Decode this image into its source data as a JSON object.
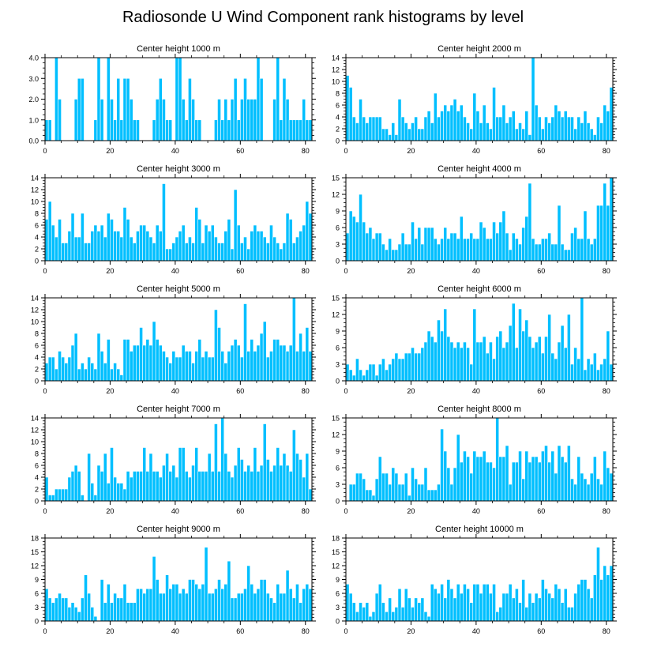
{
  "title": "Radiosonde U Wind Component rank histograms by level",
  "bar_color": "#00BFFF",
  "bar_edge": "#ffffff",
  "chart_data": [
    {
      "type": "bar",
      "title": "Center height 1000 m",
      "xlim": [
        0,
        82
      ],
      "ylim": [
        0,
        4
      ],
      "yticks": [
        0,
        1,
        2,
        3,
        4
      ],
      "ytick_labels": [
        "0.0",
        "1.0",
        "2.0",
        "3.0",
        "4.0"
      ],
      "xticks": [
        0,
        20,
        40,
        60,
        80
      ],
      "values": [
        1,
        1,
        0,
        4,
        2,
        0,
        0,
        0,
        0,
        2,
        3,
        3,
        0,
        0,
        0,
        1,
        4,
        2,
        0,
        4,
        2,
        1,
        3,
        1,
        3,
        3,
        2,
        1,
        1,
        0,
        0,
        0,
        0,
        1,
        2,
        3,
        2,
        1,
        1,
        0,
        4,
        4,
        2,
        1,
        3,
        2,
        1,
        1,
        0,
        0,
        0,
        0,
        1,
        2,
        1,
        2,
        1,
        2,
        3,
        1,
        2,
        3,
        2,
        2,
        2,
        4,
        3,
        0,
        0,
        0,
        2,
        4,
        1,
        3,
        2,
        1,
        1,
        1,
        1,
        2,
        1,
        1
      ]
    },
    {
      "type": "bar",
      "title": "Center height 2000 m",
      "xlim": [
        0,
        82
      ],
      "ylim": [
        0,
        14
      ],
      "yticks": [
        0,
        2,
        4,
        6,
        8,
        10,
        12,
        14
      ],
      "ytick_labels": [
        "0",
        "2",
        "4",
        "6",
        "8",
        "10",
        "12",
        "14"
      ],
      "xticks": [
        0,
        20,
        40,
        60,
        80
      ],
      "values": [
        11,
        9,
        4,
        3,
        7,
        4,
        3,
        4,
        4,
        4,
        4,
        2,
        2,
        1,
        3,
        1,
        7,
        4,
        3,
        2,
        3,
        4,
        2,
        2,
        4,
        5,
        3,
        8,
        4,
        5,
        6,
        5,
        6,
        7,
        5,
        6,
        4,
        3,
        2,
        8,
        5,
        3,
        6,
        3,
        2,
        9,
        4,
        4,
        6,
        3,
        4,
        5,
        2,
        3,
        2,
        5,
        1,
        14,
        6,
        4,
        2,
        4,
        3,
        4,
        6,
        5,
        4,
        5,
        4,
        4,
        2,
        4,
        3,
        5,
        3,
        2,
        1,
        4,
        3,
        6,
        5,
        9
      ]
    },
    {
      "type": "bar",
      "title": "Center height 3000 m",
      "xlim": [
        0,
        82
      ],
      "ylim": [
        0,
        14
      ],
      "yticks": [
        0,
        2,
        4,
        6,
        8,
        10,
        12,
        14
      ],
      "ytick_labels": [
        "0",
        "2",
        "4",
        "6",
        "8",
        "10",
        "12",
        "14"
      ],
      "xticks": [
        0,
        20,
        40,
        60,
        80
      ],
      "values": [
        7,
        10,
        6,
        4,
        7,
        3,
        3,
        5,
        8,
        4,
        4,
        8,
        3,
        3,
        5,
        6,
        5,
        6,
        4,
        8,
        7,
        5,
        5,
        4,
        9,
        7,
        4,
        3,
        5,
        6,
        6,
        5,
        4,
        3,
        6,
        5,
        13,
        2,
        2,
        3,
        4,
        5,
        6,
        3,
        4,
        3,
        9,
        7,
        3,
        6,
        5,
        6,
        4,
        3,
        3,
        5,
        7,
        2,
        12,
        6,
        3,
        4,
        2,
        5,
        6,
        5,
        5,
        4,
        3,
        6,
        4,
        3,
        2,
        3,
        8,
        7,
        3,
        4,
        5,
        6,
        10,
        8
      ]
    },
    {
      "type": "bar",
      "title": "Center height 4000 m",
      "xlim": [
        0,
        82
      ],
      "ylim": [
        0,
        15
      ],
      "yticks": [
        0,
        3,
        6,
        9,
        12,
        15
      ],
      "ytick_labels": [
        "0",
        "3",
        "6",
        "9",
        "12",
        "15"
      ],
      "xticks": [
        0,
        20,
        40,
        60,
        80
      ],
      "values": [
        5,
        9,
        8,
        7,
        12,
        7,
        5,
        6,
        4,
        5,
        5,
        3,
        2,
        4,
        2,
        2,
        3,
        5,
        3,
        3,
        7,
        4,
        6,
        3,
        6,
        6,
        6,
        4,
        3,
        4,
        6,
        4,
        5,
        5,
        4,
        8,
        4,
        4,
        5,
        4,
        4,
        7,
        6,
        4,
        4,
        7,
        5,
        7,
        9,
        5,
        2,
        5,
        4,
        3,
        6,
        8,
        14,
        4,
        3,
        3,
        4,
        4,
        5,
        3,
        3,
        10,
        3,
        2,
        2,
        5,
        6,
        4,
        4,
        9,
        4,
        3,
        4,
        10,
        10,
        14,
        10,
        15
      ]
    },
    {
      "type": "bar",
      "title": "Center height 5000 m",
      "xlim": [
        0,
        82
      ],
      "ylim": [
        0,
        14
      ],
      "yticks": [
        0,
        2,
        4,
        6,
        8,
        10,
        12,
        14
      ],
      "ytick_labels": [
        "0",
        "2",
        "4",
        "6",
        "8",
        "10",
        "12",
        "14"
      ],
      "xticks": [
        0,
        20,
        40,
        60,
        80
      ],
      "values": [
        3,
        4,
        4,
        2,
        5,
        4,
        3,
        4,
        6,
        8,
        2,
        3,
        2,
        4,
        3,
        2,
        8,
        5,
        3,
        7,
        2,
        3,
        2,
        1,
        7,
        7,
        5,
        6,
        6,
        9,
        6,
        7,
        6,
        10,
        7,
        6,
        5,
        4,
        3,
        5,
        4,
        4,
        6,
        5,
        5,
        3,
        5,
        7,
        4,
        5,
        4,
        4,
        12,
        9,
        5,
        3,
        5,
        6,
        7,
        6,
        4,
        13,
        5,
        7,
        5,
        6,
        8,
        10,
        4,
        5,
        7,
        7,
        6,
        6,
        5,
        6,
        14,
        5,
        8,
        5,
        9,
        5
      ]
    },
    {
      "type": "bar",
      "title": "Center height 6000 m",
      "xlim": [
        0,
        82
      ],
      "ylim": [
        0,
        15
      ],
      "yticks": [
        0,
        3,
        6,
        9,
        12,
        15
      ],
      "ytick_labels": [
        "0",
        "3",
        "6",
        "9",
        "12",
        "15"
      ],
      "xticks": [
        0,
        20,
        40,
        60,
        80
      ],
      "values": [
        3,
        2,
        1,
        4,
        2,
        1,
        2,
        3,
        3,
        1,
        3,
        4,
        2,
        3,
        4,
        5,
        4,
        4,
        5,
        5,
        6,
        5,
        5,
        6,
        7,
        9,
        8,
        7,
        11,
        9,
        13,
        8,
        7,
        6,
        7,
        6,
        7,
        6,
        3,
        13,
        7,
        7,
        8,
        5,
        7,
        4,
        8,
        9,
        6,
        7,
        10,
        14,
        6,
        13,
        9,
        11,
        8,
        6,
        7,
        8,
        5,
        8,
        12,
        5,
        4,
        7,
        10,
        6,
        12,
        3,
        6,
        4,
        15,
        2,
        4,
        3,
        5,
        2,
        3,
        4,
        9,
        3
      ]
    },
    {
      "type": "bar",
      "title": "Center height 7000 m",
      "xlim": [
        0,
        82
      ],
      "ylim": [
        0,
        14
      ],
      "yticks": [
        0,
        2,
        4,
        6,
        8,
        10,
        12,
        14
      ],
      "ytick_labels": [
        "0",
        "2",
        "4",
        "6",
        "8",
        "10",
        "12",
        "14"
      ],
      "xticks": [
        0,
        20,
        40,
        60,
        80
      ],
      "values": [
        4,
        1,
        1,
        2,
        2,
        2,
        2,
        4,
        5,
        6,
        5,
        1,
        0,
        8,
        3,
        1,
        6,
        5,
        8,
        3,
        9,
        4,
        3,
        3,
        2,
        5,
        4,
        5,
        5,
        5,
        9,
        5,
        8,
        5,
        5,
        4,
        6,
        8,
        5,
        6,
        4,
        9,
        9,
        5,
        4,
        6,
        9,
        5,
        5,
        5,
        8,
        5,
        13,
        5,
        14,
        8,
        5,
        4,
        6,
        9,
        7,
        5,
        6,
        5,
        9,
        5,
        6,
        13,
        7,
        5,
        6,
        9,
        6,
        8,
        6,
        5,
        12,
        8,
        7,
        4,
        8,
        2
      ]
    },
    {
      "type": "bar",
      "title": "Center height 8000 m",
      "xlim": [
        0,
        82
      ],
      "ylim": [
        0,
        15
      ],
      "yticks": [
        0,
        3,
        6,
        9,
        12,
        15
      ],
      "ytick_labels": [
        "0",
        "3",
        "6",
        "9",
        "12",
        "15"
      ],
      "xticks": [
        0,
        20,
        40,
        60,
        80
      ],
      "values": [
        0,
        3,
        3,
        5,
        5,
        4,
        2,
        2,
        1,
        4,
        8,
        5,
        5,
        3,
        6,
        5,
        3,
        3,
        5,
        1,
        6,
        4,
        3,
        3,
        6,
        2,
        2,
        2,
        3,
        13,
        9,
        6,
        3,
        6,
        12,
        7,
        9,
        8,
        5,
        9,
        8,
        8,
        9,
        7,
        7,
        6,
        15,
        8,
        8,
        10,
        3,
        7,
        7,
        9,
        4,
        9,
        7,
        8,
        8,
        7,
        9,
        10,
        7,
        9,
        5,
        10,
        8,
        7,
        10,
        4,
        3,
        8,
        5,
        4,
        3,
        5,
        8,
        4,
        3,
        9,
        6,
        5
      ]
    },
    {
      "type": "bar",
      "title": "Center height 9000 m",
      "xlim": [
        0,
        82
      ],
      "ylim": [
        0,
        18
      ],
      "yticks": [
        0,
        3,
        6,
        9,
        12,
        15,
        18
      ],
      "ytick_labels": [
        "0",
        "3",
        "6",
        "9",
        "12",
        "15",
        "18"
      ],
      "xticks": [
        0,
        20,
        40,
        60,
        80
      ],
      "values": [
        7,
        5,
        4,
        5,
        6,
        5,
        5,
        3,
        4,
        3,
        2,
        5,
        10,
        6,
        3,
        1,
        0,
        9,
        4,
        8,
        4,
        6,
        5,
        5,
        8,
        4,
        4,
        4,
        7,
        7,
        6,
        7,
        7,
        14,
        9,
        6,
        6,
        10,
        7,
        8,
        8,
        6,
        7,
        6,
        9,
        9,
        8,
        7,
        8,
        16,
        6,
        6,
        7,
        9,
        7,
        8,
        13,
        5,
        5,
        6,
        6,
        7,
        12,
        8,
        6,
        7,
        9,
        9,
        6,
        5,
        4,
        8,
        6,
        6,
        11,
        7,
        5,
        8,
        4,
        7,
        8,
        7
      ]
    },
    {
      "type": "bar",
      "title": "Center height 10000 m",
      "xlim": [
        0,
        82
      ],
      "ylim": [
        0,
        18
      ],
      "yticks": [
        0,
        3,
        6,
        9,
        12,
        15,
        18
      ],
      "ytick_labels": [
        "0",
        "3",
        "6",
        "9",
        "12",
        "15",
        "18"
      ],
      "xticks": [
        0,
        20,
        40,
        60,
        80
      ],
      "values": [
        8,
        6,
        4,
        2,
        4,
        3,
        4,
        1,
        2,
        6,
        8,
        4,
        2,
        5,
        2,
        3,
        7,
        3,
        7,
        5,
        3,
        5,
        4,
        5,
        2,
        1,
        8,
        7,
        6,
        8,
        5,
        9,
        7,
        5,
        8,
        6,
        8,
        7,
        4,
        8,
        8,
        6,
        8,
        8,
        6,
        8,
        2,
        3,
        6,
        6,
        8,
        5,
        7,
        4,
        9,
        3,
        6,
        4,
        6,
        5,
        9,
        7,
        6,
        5,
        8,
        7,
        4,
        7,
        3,
        3,
        6,
        8,
        9,
        9,
        7,
        5,
        10,
        16,
        9,
        12,
        10,
        12
      ]
    }
  ]
}
